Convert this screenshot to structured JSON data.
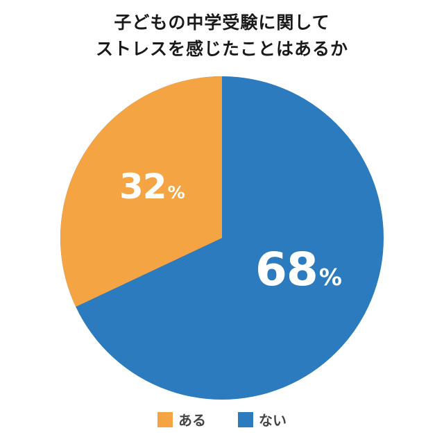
{
  "title": {
    "line1": "子どもの中学受験に関して",
    "line2": "ストレスを感じたことはあるか"
  },
  "colors": {
    "orange": "#F5A443",
    "blue": "#2B7BBE"
  },
  "slices": [
    {
      "label": "ある",
      "value_text": "32",
      "unit": "%",
      "color": "#F5A443"
    },
    {
      "label": "ない",
      "value_text": "68",
      "unit": "%",
      "color": "#2B7BBE"
    }
  ],
  "legend": [
    {
      "label": "ある",
      "color": "#F5A443"
    },
    {
      "label": "ない",
      "color": "#2B7BBE"
    }
  ],
  "chart_data": {
    "type": "pie",
    "title": "子どもの中学受験に関して ストレスを感じたことはあるか",
    "categories": [
      "ある",
      "ない"
    ],
    "values": [
      32,
      68
    ],
    "unit": "%",
    "colors": [
      "#F5A443",
      "#2B7BBE"
    ],
    "start_angle": "12 o'clock, 'ある' drawn counterclockwise",
    "legend_position": "bottom"
  }
}
